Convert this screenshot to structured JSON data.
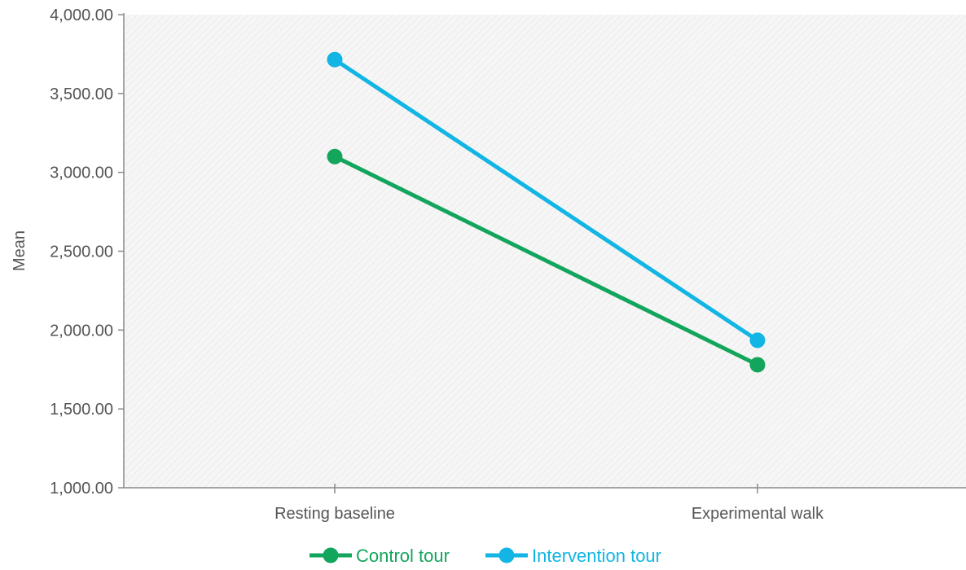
{
  "chart_data": {
    "type": "line",
    "ylabel": "Mean",
    "categories": [
      "Resting baseline",
      "Experimental walk"
    ],
    "ylim": [
      1000,
      4000
    ],
    "yticks": [
      1000,
      1500,
      2000,
      2500,
      3000,
      3500,
      4000
    ],
    "ytick_labels": [
      "1,000.00",
      "1,500.00",
      "2,000.00",
      "2,500.00",
      "3,000.00",
      "3,500.00",
      "4,000.00"
    ],
    "grid": false,
    "legend_position": "bottom-center",
    "series": [
      {
        "name": "Control tour",
        "color": "#13a55b",
        "values": [
          3100,
          1780
        ]
      },
      {
        "name": "Intervention tour",
        "color": "#12b5e3",
        "values": [
          3715,
          1935
        ]
      }
    ]
  }
}
